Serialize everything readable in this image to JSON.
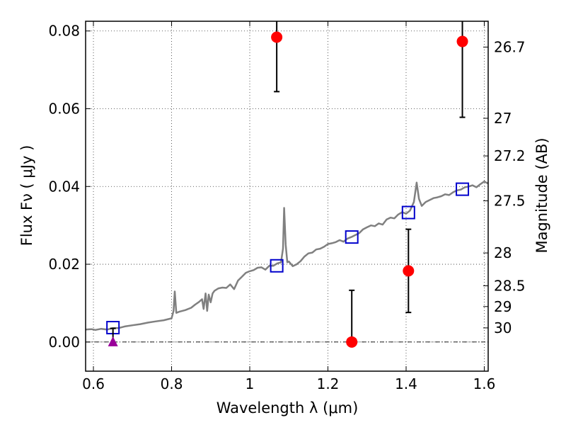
{
  "chart_data": {
    "type": "scatter",
    "xlabel": "Wavelength  λ (μm)",
    "ylabel_left": "Flux  Fν  ( μJy )",
    "ylabel_right": "Magnitude (AB)",
    "xlim": [
      0.58,
      1.61
    ],
    "ylim": [
      -0.0075,
      0.0825
    ],
    "x_ticks": [
      {
        "value": 0.6,
        "label": "0.6"
      },
      {
        "value": 0.8,
        "label": "0.8"
      },
      {
        "value": 1.0,
        "label": "1"
      },
      {
        "value": 1.2,
        "label": "1.2"
      },
      {
        "value": 1.4,
        "label": "1.4"
      },
      {
        "value": 1.6,
        "label": "1.6"
      }
    ],
    "y_ticks": [
      {
        "value": 0.0,
        "label": "0.00"
      },
      {
        "value": 0.02,
        "label": "0.02"
      },
      {
        "value": 0.04,
        "label": "0.04"
      },
      {
        "value": 0.06,
        "label": "0.06"
      },
      {
        "value": 0.08,
        "label": "0.08"
      }
    ],
    "mag_ticks": [
      {
        "value": 26.7,
        "label": "26.7"
      },
      {
        "value": 27.0,
        "label": "27"
      },
      {
        "value": 27.2,
        "label": "27.2"
      },
      {
        "value": 27.5,
        "label": "27.5"
      },
      {
        "value": 28.0,
        "label": "28"
      },
      {
        "value": 28.5,
        "label": "28.5"
      },
      {
        "value": 29.0,
        "label": "29"
      },
      {
        "value": 30.0,
        "label": "30"
      }
    ],
    "gridlines": true,
    "zero_line": true,
    "colors": {
      "template": "#808080",
      "observed": "#ff0000",
      "model": "#0000cc",
      "upper_limit": "#990099",
      "errorbar": "#000000"
    },
    "template_spectrum": [
      [
        0.58,
        0.0032
      ],
      [
        0.595,
        0.0033
      ],
      [
        0.605,
        0.0031
      ],
      [
        0.62,
        0.0034
      ],
      [
        0.635,
        0.0032
      ],
      [
        0.65,
        0.0036
      ],
      [
        0.665,
        0.0036
      ],
      [
        0.68,
        0.004
      ],
      [
        0.7,
        0.0043
      ],
      [
        0.72,
        0.0046
      ],
      [
        0.74,
        0.005
      ],
      [
        0.76,
        0.0053
      ],
      [
        0.78,
        0.0056
      ],
      [
        0.8,
        0.0061
      ],
      [
        0.805,
        0.008
      ],
      [
        0.808,
        0.013
      ],
      [
        0.812,
        0.0075
      ],
      [
        0.82,
        0.0078
      ],
      [
        0.835,
        0.0082
      ],
      [
        0.85,
        0.0088
      ],
      [
        0.86,
        0.0096
      ],
      [
        0.87,
        0.0103
      ],
      [
        0.878,
        0.011
      ],
      [
        0.882,
        0.0085
      ],
      [
        0.887,
        0.0125
      ],
      [
        0.891,
        0.008
      ],
      [
        0.895,
        0.0122
      ],
      [
        0.9,
        0.0102
      ],
      [
        0.905,
        0.0125
      ],
      [
        0.91,
        0.0132
      ],
      [
        0.92,
        0.0138
      ],
      [
        0.93,
        0.014
      ],
      [
        0.94,
        0.0139
      ],
      [
        0.95,
        0.0148
      ],
      [
        0.96,
        0.0136
      ],
      [
        0.97,
        0.0158
      ],
      [
        0.98,
        0.0168
      ],
      [
        0.99,
        0.0178
      ],
      [
        1.0,
        0.0182
      ],
      [
        1.01,
        0.0185
      ],
      [
        1.02,
        0.0191
      ],
      [
        1.03,
        0.0192
      ],
      [
        1.04,
        0.0186
      ],
      [
        1.05,
        0.0196
      ],
      [
        1.06,
        0.0196
      ],
      [
        1.07,
        0.0202
      ],
      [
        1.08,
        0.0205
      ],
      [
        1.085,
        0.024
      ],
      [
        1.088,
        0.0345
      ],
      [
        1.092,
        0.025
      ],
      [
        1.096,
        0.0205
      ],
      [
        1.1,
        0.0207
      ],
      [
        1.11,
        0.0195
      ],
      [
        1.12,
        0.02
      ],
      [
        1.13,
        0.0208
      ],
      [
        1.14,
        0.022
      ],
      [
        1.15,
        0.0228
      ],
      [
        1.16,
        0.023
      ],
      [
        1.17,
        0.0238
      ],
      [
        1.18,
        0.024
      ],
      [
        1.19,
        0.0245
      ],
      [
        1.2,
        0.0252
      ],
      [
        1.21,
        0.0254
      ],
      [
        1.22,
        0.0257
      ],
      [
        1.23,
        0.0262
      ],
      [
        1.24,
        0.0258
      ],
      [
        1.25,
        0.0266
      ],
      [
        1.26,
        0.027
      ],
      [
        1.27,
        0.0275
      ],
      [
        1.28,
        0.028
      ],
      [
        1.29,
        0.029
      ],
      [
        1.3,
        0.0295
      ],
      [
        1.31,
        0.03
      ],
      [
        1.32,
        0.0298
      ],
      [
        1.33,
        0.0305
      ],
      [
        1.34,
        0.0302
      ],
      [
        1.35,
        0.0315
      ],
      [
        1.36,
        0.032
      ],
      [
        1.37,
        0.0318
      ],
      [
        1.38,
        0.0328
      ],
      [
        1.39,
        0.0334
      ],
      [
        1.4,
        0.033
      ],
      [
        1.41,
        0.0338
      ],
      [
        1.42,
        0.036
      ],
      [
        1.427,
        0.041
      ],
      [
        1.433,
        0.0368
      ],
      [
        1.44,
        0.035
      ],
      [
        1.45,
        0.036
      ],
      [
        1.46,
        0.0365
      ],
      [
        1.47,
        0.037
      ],
      [
        1.48,
        0.0372
      ],
      [
        1.49,
        0.0375
      ],
      [
        1.5,
        0.038
      ],
      [
        1.51,
        0.0378
      ],
      [
        1.52,
        0.0385
      ],
      [
        1.53,
        0.039
      ],
      [
        1.54,
        0.0392
      ],
      [
        1.55,
        0.0398
      ],
      [
        1.56,
        0.04
      ],
      [
        1.57,
        0.0403
      ],
      [
        1.58,
        0.0398
      ],
      [
        1.59,
        0.0406
      ],
      [
        1.6,
        0.0413
      ],
      [
        1.605,
        0.041
      ],
      [
        1.61,
        0.0408
      ]
    ],
    "model_points": [
      {
        "x": 0.65,
        "y": 0.0037
      },
      {
        "x": 1.069,
        "y": 0.0196
      },
      {
        "x": 1.261,
        "y": 0.027
      },
      {
        "x": 1.406,
        "y": 0.0333
      },
      {
        "x": 1.544,
        "y": 0.0393
      }
    ],
    "observed_points": [
      {
        "x": 1.069,
        "y": 0.0784,
        "yerr_low": 0.014
      },
      {
        "x": 1.261,
        "y": 0.0,
        "yerr_low": 0.0,
        "yerr_high": 0.0133
      },
      {
        "x": 1.406,
        "y": 0.0183,
        "yerr_low": 0.0107,
        "yerr_high": 0.0107
      },
      {
        "x": 1.544,
        "y": 0.0773,
        "yerr_low": 0.0195
      }
    ],
    "upper_limit_point": {
      "x": 0.65,
      "y": 0.0,
      "y_top": 0.0035
    }
  }
}
